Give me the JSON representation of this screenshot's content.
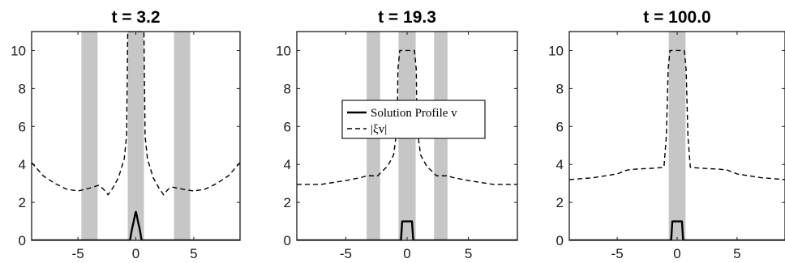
{
  "chart_data": [
    {
      "type": "line",
      "title": "t = 3.2",
      "xlim": [
        -9,
        9
      ],
      "ylim": [
        0,
        11
      ],
      "xticks": [
        -5,
        0,
        5
      ],
      "yticks": [
        0,
        2,
        4,
        6,
        8,
        10
      ],
      "grid": false,
      "legend": null,
      "shaded_bands": [
        [
          -4.7,
          -3.3
        ],
        [
          -0.7,
          0.7
        ],
        [
          3.3,
          4.7
        ]
      ],
      "series": [
        {
          "name": "Solution Profile v",
          "style": "solid",
          "x": [
            -9,
            -0.5,
            -0.35,
            -0.2,
            -0.05,
            0,
            0.05,
            0.2,
            0.35,
            0.5,
            9
          ],
          "y": [
            0,
            0,
            0.55,
            0.95,
            1.4,
            1.5,
            1.4,
            0.95,
            0.55,
            0,
            0
          ]
        },
        {
          "name": "|ξ_v|",
          "style": "dashed",
          "x": [
            -9,
            -8,
            -7,
            -6,
            -5,
            -4,
            -3.2,
            -2.8,
            -2.4,
            -2,
            -1.5,
            -1,
            -0.8,
            -0.7,
            0,
            0.7,
            0.8,
            1,
            1.5,
            2,
            2.4,
            2.8,
            3.2,
            4,
            5,
            6,
            7,
            8,
            9
          ],
          "y": [
            4.1,
            3.4,
            3.0,
            2.7,
            2.6,
            2.75,
            2.9,
            2.7,
            2.4,
            2.75,
            3.3,
            4.3,
            5.5,
            11,
            11,
            11,
            5.5,
            4.3,
            3.3,
            2.75,
            2.4,
            2.7,
            2.8,
            2.7,
            2.6,
            2.7,
            3.0,
            3.4,
            4.1
          ]
        }
      ]
    },
    {
      "type": "line",
      "title": "t = 19.3",
      "xlim": [
        -9,
        9
      ],
      "ylim": [
        0,
        11
      ],
      "xticks": [
        -5,
        0,
        5
      ],
      "yticks": [
        0,
        2,
        4,
        6,
        8,
        10
      ],
      "grid": false,
      "legend": "upper-right-of-center",
      "legend_entries": [
        {
          "label": "Solution Profile v",
          "style": "solid"
        },
        {
          "label": "|ξv|",
          "style": "dashed"
        }
      ],
      "shaded_bands": [
        [
          -3.3,
          -2.2
        ],
        [
          -0.7,
          0.7
        ],
        [
          2.2,
          3.3
        ]
      ],
      "series": [
        {
          "name": "Solution Profile v",
          "style": "solid",
          "x": [
            -9,
            -0.5,
            -0.4,
            0.4,
            0.5,
            9
          ],
          "y": [
            0,
            0,
            1,
            1,
            0,
            0
          ]
        },
        {
          "name": "|ξv|",
          "style": "dashed",
          "x": [
            -9,
            -7,
            -5,
            -3.8,
            -3.3,
            -2.4,
            -2.1,
            -1.6,
            -1.1,
            -0.8,
            -0.75,
            -0.6,
            0.6,
            0.75,
            0.8,
            1.1,
            1.6,
            2.1,
            2.4,
            3.3,
            3.8,
            5,
            7,
            9
          ],
          "y": [
            2.95,
            2.95,
            3.15,
            3.3,
            3.4,
            3.4,
            3.6,
            3.9,
            4.5,
            6.0,
            9.0,
            10,
            10,
            9.0,
            6.0,
            4.5,
            3.9,
            3.6,
            3.4,
            3.4,
            3.3,
            3.15,
            2.95,
            2.95
          ]
        }
      ]
    },
    {
      "type": "line",
      "title": "t = 100.0",
      "xlim": [
        -9,
        9
      ],
      "ylim": [
        0,
        11
      ],
      "xticks": [
        -5,
        0,
        5
      ],
      "yticks": [
        0,
        2,
        4,
        6,
        8,
        10
      ],
      "grid": false,
      "legend": null,
      "shaded_bands": [
        [
          -0.7,
          0.7
        ]
      ],
      "series": [
        {
          "name": "Solution Profile v",
          "style": "solid",
          "x": [
            -9,
            -0.5,
            -0.4,
            0.4,
            0.5,
            9
          ],
          "y": [
            0,
            0,
            1,
            1,
            0,
            0
          ]
        },
        {
          "name": "|ξv|",
          "style": "dashed",
          "x": [
            -9,
            -7,
            -5,
            -4.2,
            -3.5,
            -2,
            -1.1,
            -0.9,
            -0.75,
            -0.6,
            0.6,
            0.75,
            0.9,
            1.1,
            2,
            3.5,
            4.2,
            5,
            7,
            9
          ],
          "y": [
            3.2,
            3.3,
            3.5,
            3.7,
            3.75,
            3.8,
            3.85,
            5.5,
            9.0,
            10,
            10,
            9.0,
            5.5,
            3.85,
            3.8,
            3.75,
            3.7,
            3.5,
            3.3,
            3.2
          ]
        }
      ]
    }
  ]
}
